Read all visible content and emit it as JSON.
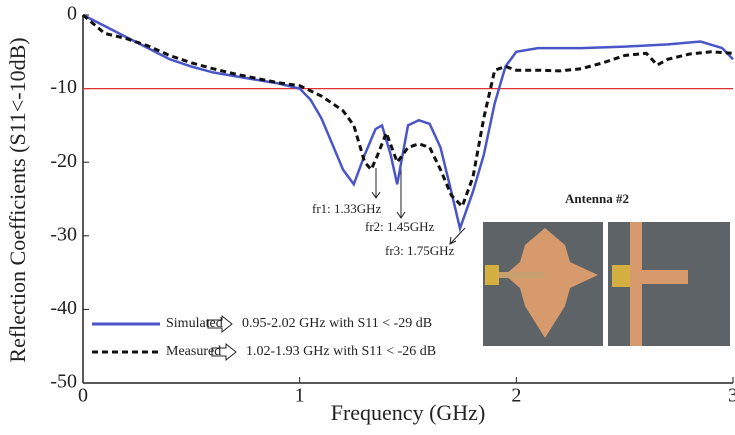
{
  "chart_data": {
    "type": "line",
    "xlabel": "Frequency (GHz)",
    "ylabel": "Reflection Coefficients (S11<-10dB)",
    "xlim": [
      0,
      3
    ],
    "xticks": [
      0,
      1,
      2,
      3
    ],
    "ylim": [
      -50,
      0
    ],
    "yticks": [
      0,
      -10,
      -20,
      -30,
      -40,
      -50
    ],
    "reference_line": {
      "value": -10,
      "color": "#e03030"
    },
    "series": [
      {
        "name": "Simulated",
        "color": "#4a55c8",
        "dash": false,
        "note": "0.95-2.02 GHz with S11 < -29 dB",
        "x": [
          0,
          0.1,
          0.2,
          0.3,
          0.4,
          0.5,
          0.6,
          0.7,
          0.8,
          0.9,
          1.0,
          1.05,
          1.1,
          1.15,
          1.2,
          1.25,
          1.3,
          1.35,
          1.38,
          1.42,
          1.45,
          1.5,
          1.55,
          1.6,
          1.65,
          1.7,
          1.74,
          1.8,
          1.85,
          1.9,
          1.95,
          2.0,
          2.1,
          2.3,
          2.5,
          2.7,
          2.85,
          2.95,
          3.0
        ],
        "values": [
          0,
          -1.5,
          -3,
          -4.5,
          -6,
          -7,
          -7.8,
          -8.3,
          -8.8,
          -9.3,
          -10,
          -11.5,
          -14,
          -17.5,
          -21,
          -23,
          -19,
          -15.5,
          -15,
          -19,
          -23,
          -15,
          -14.3,
          -14.8,
          -18,
          -24,
          -29,
          -24,
          -19,
          -12,
          -7,
          -5,
          -4.5,
          -4.5,
          -4.3,
          -4,
          -3.6,
          -4.5,
          -6
        ]
      },
      {
        "name": "Measured",
        "color": "#111111",
        "dash": true,
        "note": "1.02-1.93 GHz  with S11 < -26 dB",
        "x": [
          0,
          0.1,
          0.2,
          0.3,
          0.4,
          0.5,
          0.6,
          0.7,
          0.8,
          0.9,
          1.0,
          1.05,
          1.1,
          1.15,
          1.2,
          1.25,
          1.3,
          1.33,
          1.36,
          1.4,
          1.45,
          1.5,
          1.55,
          1.6,
          1.65,
          1.7,
          1.75,
          1.8,
          1.85,
          1.9,
          1.95,
          2.0,
          2.1,
          2.2,
          2.3,
          2.4,
          2.5,
          2.6,
          2.65,
          2.7,
          2.8,
          2.9,
          3.0
        ],
        "values": [
          0,
          -2.5,
          -3.2,
          -4.2,
          -5.5,
          -6.5,
          -7.3,
          -8,
          -8.6,
          -9.2,
          -9.6,
          -10.3,
          -11,
          -12,
          -13,
          -15,
          -20,
          -21,
          -19,
          -16,
          -20,
          -18,
          -17.5,
          -18,
          -21,
          -24.5,
          -26,
          -22,
          -14,
          -7.5,
          -7,
          -7.5,
          -7.5,
          -7.6,
          -7.3,
          -6.5,
          -5.5,
          -5.2,
          -6.8,
          -6,
          -5.3,
          -5,
          -5.2
        ]
      }
    ],
    "annotations": [
      "fr1: 1.33GHz",
      "fr2: 1.45GHz",
      "fr3: 1.75GHz"
    ],
    "inset_title": "Antenna #2"
  }
}
